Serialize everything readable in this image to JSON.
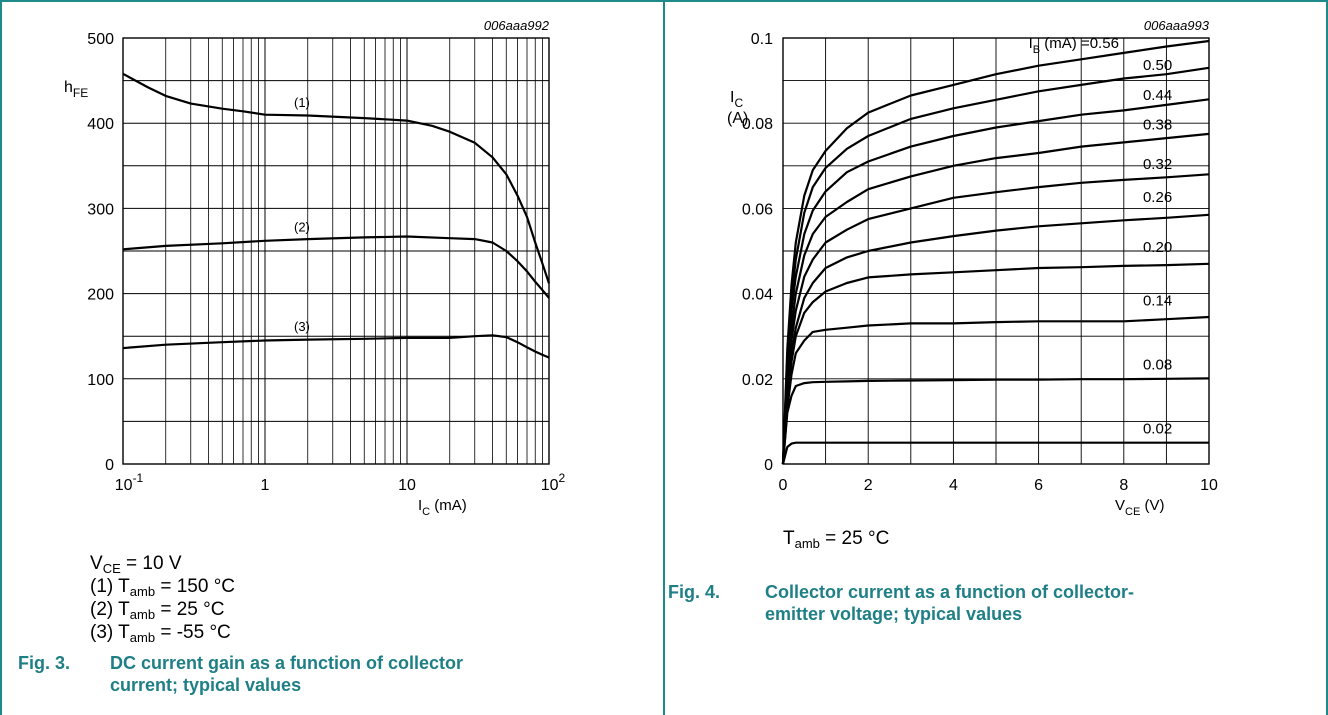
{
  "chart_data": [
    {
      "type": "line",
      "code": "006aaa992",
      "xscale": "log",
      "xlim": [
        0.1,
        100
      ],
      "ylim": [
        0,
        500
      ],
      "ylabel": {
        "main": "h",
        "sub": "FE"
      },
      "xlabel": {
        "main": "I",
        "sub": "C",
        "rest": " (mA)"
      },
      "xticks": [
        {
          "v": 0.1,
          "base": "10",
          "exp": "-1"
        },
        {
          "v": 1,
          "base": "1",
          "exp": ""
        },
        {
          "v": 10,
          "base": "10",
          "exp": ""
        },
        {
          "v": 100,
          "base": "10",
          "exp": "2"
        }
      ],
      "yticks": [
        0,
        100,
        200,
        300,
        400,
        500
      ],
      "series": [
        {
          "name": "(1)",
          "label_at": [
            1.6,
            418
          ],
          "x": [
            0.1,
            0.15,
            0.2,
            0.3,
            0.5,
            0.7,
            1,
            2,
            5,
            10,
            15,
            20,
            30,
            40,
            50,
            60,
            70,
            80,
            90,
            100
          ],
          "y": [
            458,
            442,
            432,
            423,
            417,
            414,
            410,
            409,
            406,
            403,
            397,
            390,
            377,
            360,
            340,
            315,
            290,
            260,
            235,
            212
          ]
        },
        {
          "name": "(2)",
          "label_at": [
            1.6,
            272
          ],
          "x": [
            0.1,
            0.2,
            0.5,
            1,
            2,
            5,
            10,
            20,
            30,
            40,
            50,
            60,
            70,
            80,
            90,
            100
          ],
          "y": [
            252,
            256,
            259,
            262,
            264,
            266,
            267,
            265,
            264,
            260,
            250,
            238,
            226,
            214,
            204,
            195
          ]
        },
        {
          "name": "(3)",
          "label_at": [
            1.6,
            155
          ],
          "x": [
            0.1,
            0.2,
            0.5,
            1,
            2,
            5,
            10,
            20,
            30,
            40,
            50,
            60,
            70,
            80,
            90,
            100
          ],
          "y": [
            136,
            140,
            143,
            145,
            146,
            147,
            148,
            148,
            150,
            151,
            149,
            143,
            137,
            132,
            128,
            125
          ]
        }
      ]
    },
    {
      "type": "line",
      "code": "006aaa993",
      "xlim": [
        0,
        10
      ],
      "ylim": [
        0,
        0.1
      ],
      "ylabel": {
        "main": "I",
        "sub": "C",
        "unit": "(A)"
      },
      "xlabel": {
        "main": "V",
        "sub": "CE",
        "rest": " (V)"
      },
      "xticks": [
        "0",
        "2",
        "4",
        "6",
        "8",
        "10"
      ],
      "yticks": [
        "0",
        "0.02",
        "0.04",
        "0.06",
        "0.08",
        "0.1"
      ],
      "legend_prefix": {
        "main": "I",
        "sub": "B",
        "rest": " (mA) = "
      },
      "series": [
        {
          "name": "0.56",
          "label_at": [
            7.2,
            0.0977
          ],
          "prefix": true,
          "x": [
            0,
            0.1,
            0.2,
            0.3,
            0.5,
            0.7,
            1,
            1.5,
            2,
            3,
            4,
            5,
            6,
            7,
            8,
            9,
            10
          ],
          "y": [
            0,
            0.027,
            0.042,
            0.052,
            0.063,
            0.069,
            0.0735,
            0.0788,
            0.0825,
            0.0865,
            0.089,
            0.0915,
            0.0935,
            0.095,
            0.0965,
            0.098,
            0.0993
          ]
        },
        {
          "name": "0.50",
          "label_at": [
            8.45,
            0.0925
          ],
          "x": [
            0,
            0.1,
            0.2,
            0.3,
            0.5,
            0.7,
            1,
            1.5,
            2,
            3,
            4,
            5,
            6,
            7,
            8,
            9,
            10
          ],
          "y": [
            0,
            0.025,
            0.039,
            0.048,
            0.059,
            0.065,
            0.0695,
            0.074,
            0.077,
            0.081,
            0.0835,
            0.0855,
            0.0875,
            0.089,
            0.0905,
            0.0915,
            0.093
          ]
        },
        {
          "name": "0.44",
          "label_at": [
            8.45,
            0.0855
          ],
          "x": [
            0,
            0.1,
            0.2,
            0.3,
            0.5,
            0.7,
            1,
            1.5,
            2,
            3,
            4,
            5,
            6,
            7,
            8,
            9,
            10
          ],
          "y": [
            0,
            0.023,
            0.036,
            0.044,
            0.054,
            0.0595,
            0.064,
            0.0685,
            0.071,
            0.0745,
            0.077,
            0.079,
            0.0805,
            0.082,
            0.083,
            0.0843,
            0.0856
          ]
        },
        {
          "name": "0.38",
          "label_at": [
            8.45,
            0.0785
          ],
          "x": [
            0,
            0.1,
            0.2,
            0.3,
            0.5,
            0.7,
            1,
            1.5,
            2,
            3,
            4,
            5,
            6,
            7,
            8,
            9,
            10
          ],
          "y": [
            0,
            0.021,
            0.032,
            0.04,
            0.049,
            0.054,
            0.058,
            0.0615,
            0.0645,
            0.0675,
            0.07,
            0.0718,
            0.073,
            0.0745,
            0.0755,
            0.0765,
            0.0775
          ]
        },
        {
          "name": "0.32",
          "label_at": [
            8.45,
            0.0692
          ],
          "x": [
            0,
            0.1,
            0.2,
            0.3,
            0.5,
            0.7,
            1,
            1.5,
            2,
            3,
            4,
            5,
            6,
            7,
            8,
            9,
            10
          ],
          "y": [
            0,
            0.019,
            0.029,
            0.036,
            0.044,
            0.048,
            0.052,
            0.055,
            0.0575,
            0.06,
            0.0625,
            0.0638,
            0.065,
            0.066,
            0.0667,
            0.0673,
            0.068
          ]
        },
        {
          "name": "0.26",
          "label_at": [
            8.45,
            0.0615
          ],
          "x": [
            0,
            0.1,
            0.2,
            0.3,
            0.5,
            0.7,
            1,
            1.5,
            2,
            3,
            4,
            5,
            6,
            7,
            8,
            9,
            10
          ],
          "y": [
            0,
            0.017,
            0.026,
            0.032,
            0.039,
            0.0425,
            0.046,
            0.0485,
            0.05,
            0.052,
            0.0535,
            0.0548,
            0.0558,
            0.0565,
            0.0572,
            0.0578,
            0.0585
          ]
        },
        {
          "name": "0.20",
          "label_at": [
            8.45,
            0.0498
          ],
          "x": [
            0,
            0.1,
            0.2,
            0.3,
            0.5,
            0.7,
            1,
            1.5,
            2,
            3,
            4,
            5,
            6,
            7,
            8,
            9,
            10
          ],
          "y": [
            0,
            0.015,
            0.024,
            0.03,
            0.0355,
            0.038,
            0.0405,
            0.0425,
            0.0438,
            0.0445,
            0.045,
            0.0455,
            0.046,
            0.0462,
            0.0465,
            0.0467,
            0.047
          ]
        },
        {
          "name": "0.14",
          "label_at": [
            8.45,
            0.0372
          ],
          "x": [
            0,
            0.1,
            0.2,
            0.3,
            0.5,
            0.7,
            1,
            1.5,
            2,
            3,
            4,
            5,
            6,
            7,
            8,
            9,
            10
          ],
          "y": [
            0,
            0.013,
            0.021,
            0.026,
            0.029,
            0.031,
            0.0315,
            0.032,
            0.0325,
            0.033,
            0.033,
            0.0333,
            0.0335,
            0.0335,
            0.0335,
            0.034,
            0.0345
          ]
        },
        {
          "name": "0.08",
          "label_at": [
            8.45,
            0.0222
          ],
          "x": [
            0,
            0.1,
            0.2,
            0.3,
            0.5,
            0.7,
            1,
            1.5,
            2,
            3,
            4,
            5,
            6,
            7,
            8,
            9,
            10
          ],
          "y": [
            0,
            0.012,
            0.016,
            0.0183,
            0.019,
            0.0192,
            0.0193,
            0.0194,
            0.0195,
            0.0196,
            0.0197,
            0.0198,
            0.0198,
            0.0199,
            0.0199,
            0.02,
            0.0201
          ]
        },
        {
          "name": "0.02",
          "label_at": [
            8.45,
            0.0072
          ],
          "x": [
            0,
            0.1,
            0.2,
            0.3,
            0.5,
            1,
            2,
            4,
            6,
            8,
            10
          ],
          "y": [
            0,
            0.004,
            0.0048,
            0.005,
            0.005,
            0.005,
            0.005,
            0.005,
            0.005,
            0.005,
            0.005
          ]
        }
      ]
    }
  ],
  "conditions_left": [
    {
      "pre": "V",
      "sub": "CE",
      "post": " = 10 V"
    },
    {
      "pre": "(1) T",
      "sub": "amb",
      "post": " = 150 °C"
    },
    {
      "pre": "(2) T",
      "sub": "amb",
      "post": " = 25 °C"
    },
    {
      "pre": "(3) T",
      "sub": "amb",
      "post": " = -55 °C"
    }
  ],
  "conditions_right": [
    {
      "pre": "T",
      "sub": "amb",
      "post": " = 25 °C"
    }
  ],
  "captions": [
    {
      "number": "Fig. 3.",
      "lines": [
        "DC current gain as a function of collector",
        "current; typical values"
      ]
    },
    {
      "number": "Fig. 4.",
      "lines": [
        "Collector current as a function of collector-",
        "emitter voltage; typical values"
      ]
    }
  ],
  "colors": {
    "border": "#1e8a8a",
    "caption": "#1e7f86",
    "curve": "#000000",
    "grid": "#000000"
  }
}
